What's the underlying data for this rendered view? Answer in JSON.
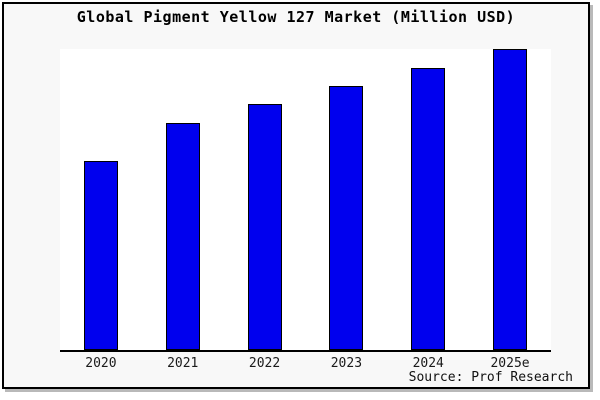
{
  "window": {
    "background": "#f8f8f8",
    "border_color": "#000000",
    "shadow_color": "#b9b9b9"
  },
  "chart_data": {
    "type": "bar",
    "title": "Global Pigment Yellow 127 Market (Million USD)",
    "categories": [
      "2020",
      "2021",
      "2022",
      "2023",
      "2024",
      "2025e"
    ],
    "values_relative_pct_of_tallest": [
      62.7,
      75.3,
      81.7,
      87.7,
      93.7,
      100
    ],
    "value_labels_shown": false,
    "y_axis_shown": false,
    "xlabel": "",
    "ylabel": "",
    "grid": false,
    "legend": false,
    "bar_color": "#0000ee",
    "bar_border_color": "#000000",
    "plot_background": "#ffffff",
    "source": "Source: Prof Research"
  }
}
